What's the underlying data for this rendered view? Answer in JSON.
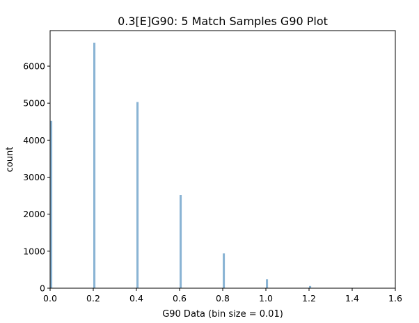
{
  "chart_data": {
    "type": "bar",
    "title": "0.3[E]G90: 5 Match Samples G90 Plot",
    "xlabel": "G90 Data (bin size = 0.01)",
    "ylabel": "count",
    "xlim": [
      0,
      1.6
    ],
    "ylim": [
      0,
      6960
    ],
    "xticks": [
      "0.0",
      "0.2",
      "0.4",
      "0.6",
      "0.8",
      "1.0",
      "1.2",
      "1.4",
      "1.6"
    ],
    "yticks": [
      "0",
      "1000",
      "2000",
      "3000",
      "4000",
      "5000",
      "6000"
    ],
    "bin_width": 0.01,
    "bar_color": "#8ab4d4",
    "bars": [
      {
        "x": 0.0,
        "count": 4520
      },
      {
        "x": 0.2,
        "count": 6630
      },
      {
        "x": 0.4,
        "count": 5030
      },
      {
        "x": 0.6,
        "count": 2520
      },
      {
        "x": 0.8,
        "count": 940
      },
      {
        "x": 1.0,
        "count": 240
      },
      {
        "x": 1.2,
        "count": 60
      }
    ],
    "grid": false,
    "legend": "none"
  }
}
